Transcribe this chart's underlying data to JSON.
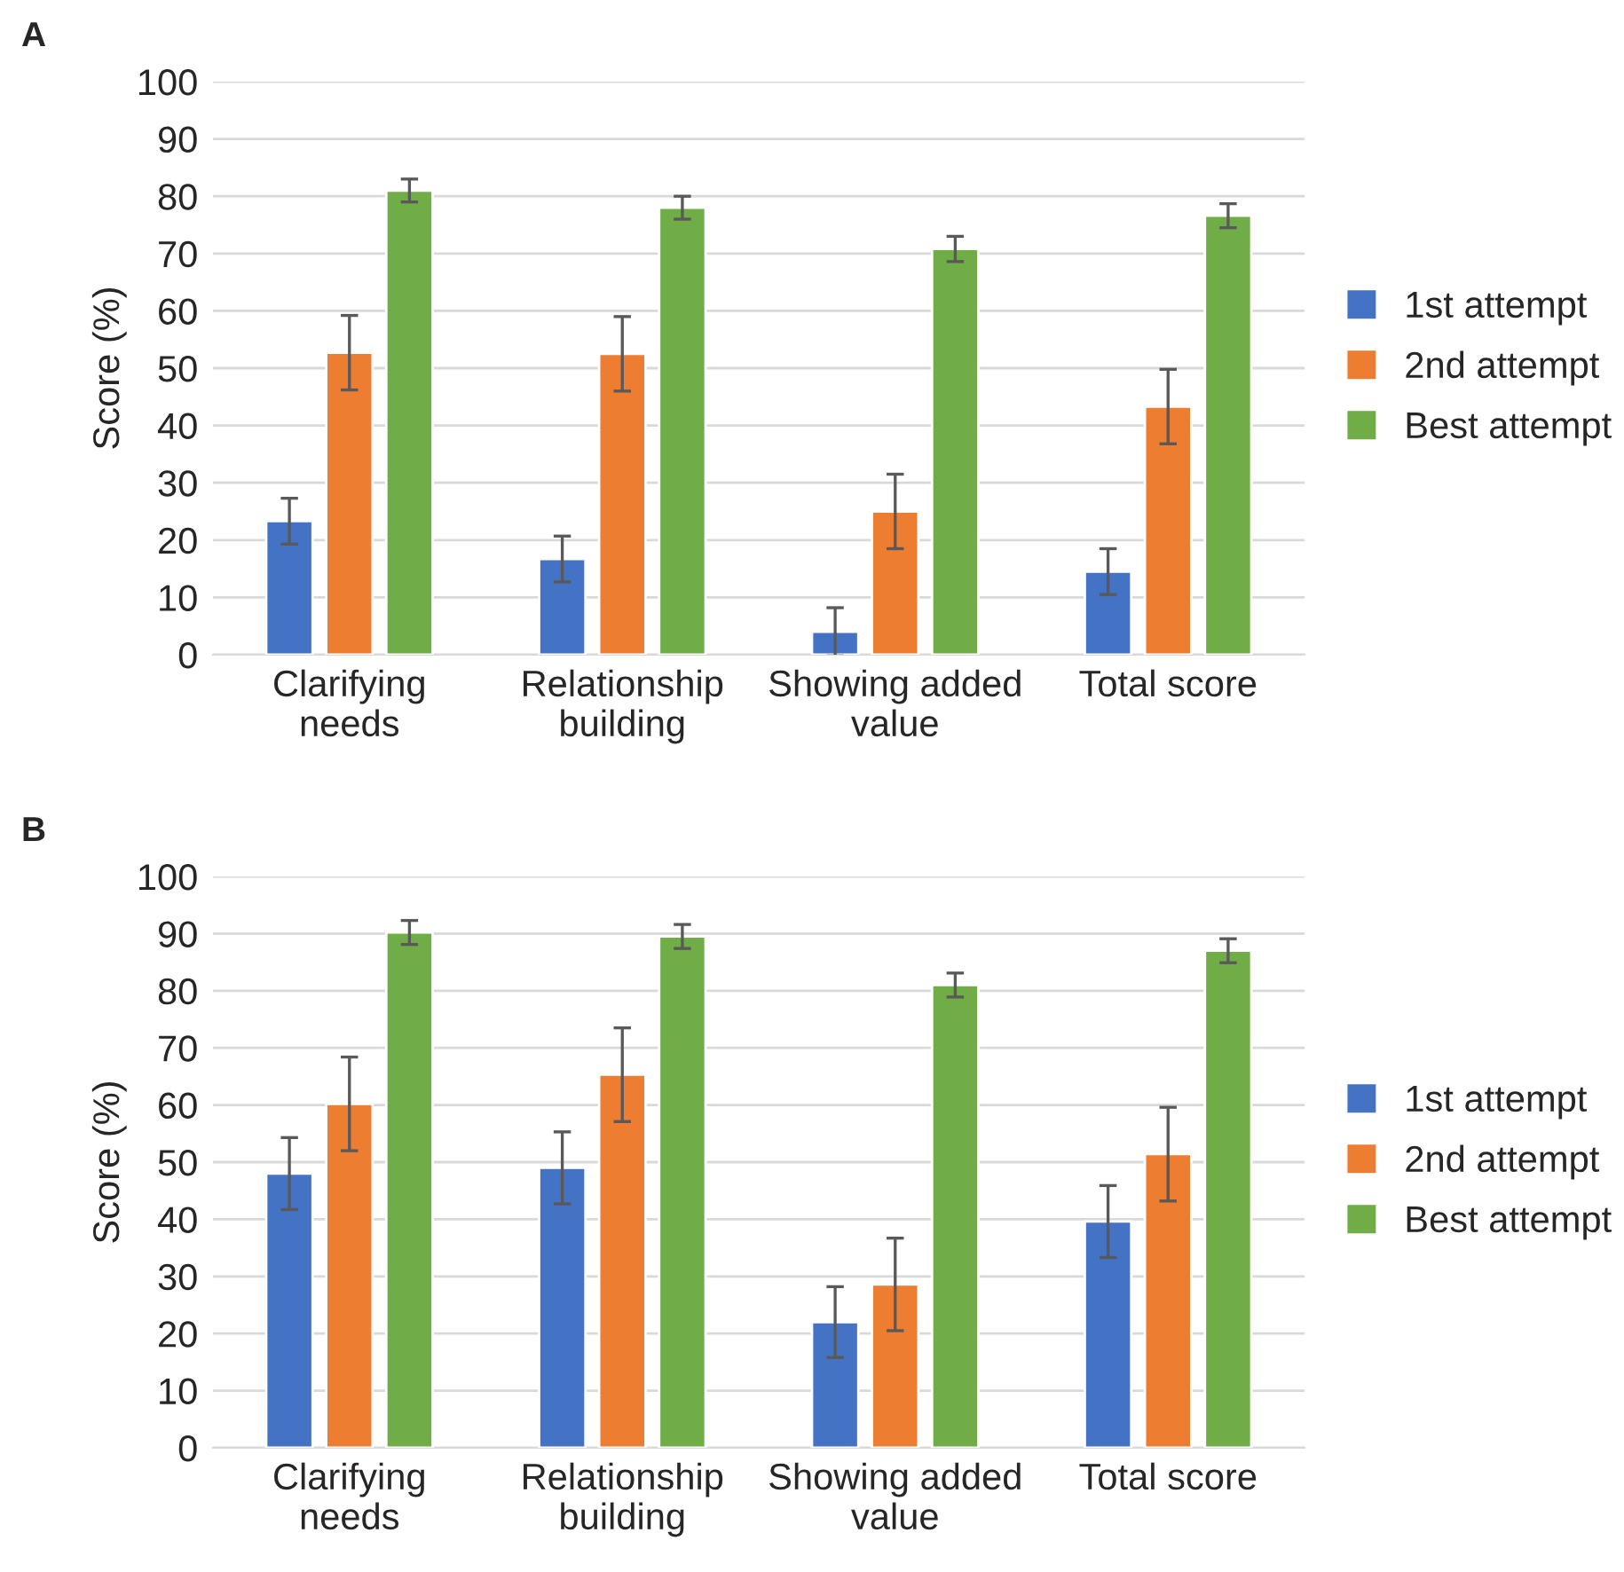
{
  "chart_data": [
    {
      "type": "bar",
      "title": "A",
      "ylabel": "Score (%)",
      "categories": [
        "Clarifying\nneeds",
        "Relationship\nbuilding",
        "Showing added\nvalue",
        "Total score"
      ],
      "ylim": [
        0,
        100
      ],
      "yticks": [
        0,
        10,
        20,
        30,
        40,
        50,
        60,
        70,
        80,
        90,
        100
      ],
      "grid": "y",
      "legend": "right",
      "series": [
        {
          "name": "1st attempt",
          "color": "#4472c4",
          "values": [
            23.3,
            16.7,
            4,
            14.5
          ],
          "errors": [
            4,
            4,
            4.2,
            4
          ]
        },
        {
          "name": "2nd attempt",
          "color": "#ed7d31",
          "values": [
            52.7,
            52.5,
            25,
            43.3
          ],
          "errors": [
            6.5,
            6.5,
            6.5,
            6.5
          ]
        },
        {
          "name": "Best attempt",
          "color": "#70ad47",
          "values": [
            81,
            78,
            70.8,
            76.6
          ],
          "errors": [
            2,
            2,
            2.2,
            2.1
          ]
        }
      ]
    },
    {
      "type": "bar",
      "title": "B",
      "ylabel": "Score (%)",
      "categories": [
        "Clarifying\nneeds",
        "Relationship\nbuilding",
        "Showing added\nvalue",
        "Total score"
      ],
      "ylim": [
        0,
        100
      ],
      "yticks": [
        0,
        10,
        20,
        30,
        40,
        50,
        60,
        70,
        80,
        90,
        100
      ],
      "grid": "y",
      "legend": "right",
      "series": [
        {
          "name": "1st attempt",
          "color": "#4472c4",
          "values": [
            48,
            49,
            22,
            39.6
          ],
          "errors": [
            6.3,
            6.3,
            6.2,
            6.3
          ]
        },
        {
          "name": "2nd attempt",
          "color": "#ed7d31",
          "values": [
            60.2,
            65.3,
            28.6,
            51.4
          ],
          "errors": [
            8.2,
            8.2,
            8.1,
            8.2
          ]
        },
        {
          "name": "Best attempt",
          "color": "#70ad47",
          "values": [
            90.2,
            89.5,
            81,
            87
          ],
          "errors": [
            2.1,
            2.1,
            2.1,
            2.1
          ]
        }
      ]
    }
  ]
}
